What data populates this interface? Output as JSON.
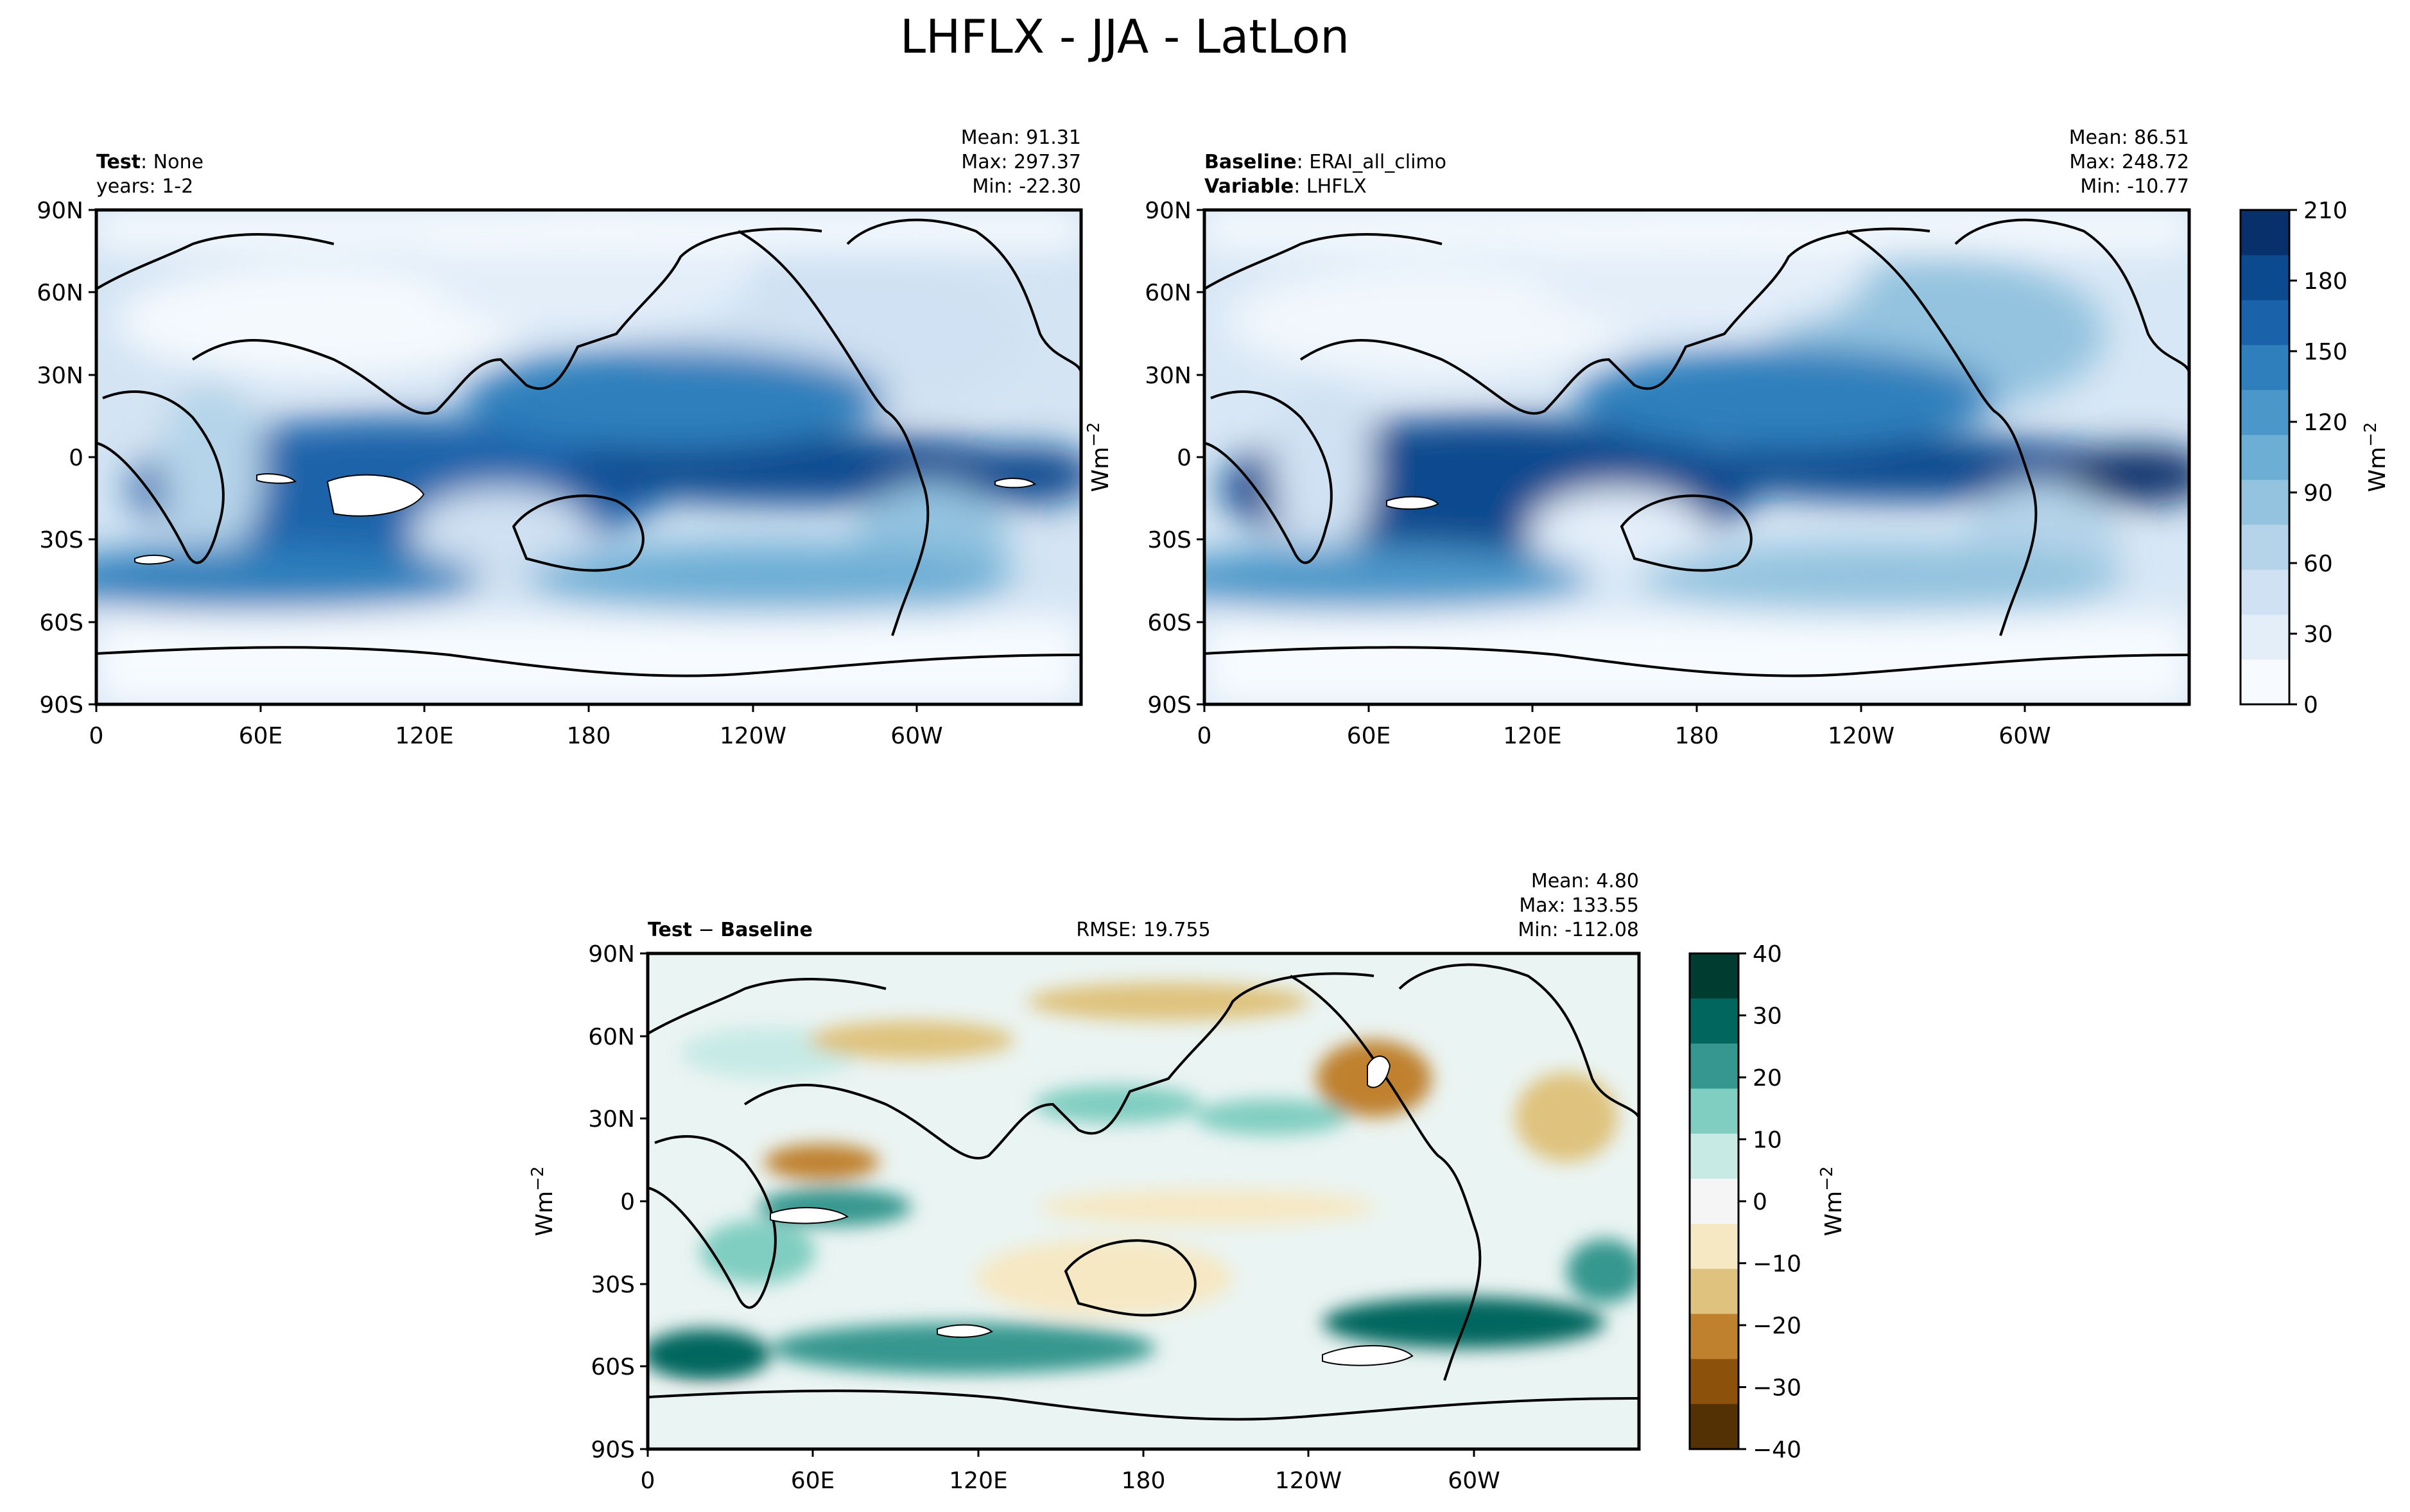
{
  "figure": {
    "title": "LHFLX - JJA - LatLon"
  },
  "axes": {
    "lat_ticks": [
      "90N",
      "60N",
      "30N",
      "0",
      "30S",
      "60S",
      "90S"
    ],
    "lon_ticks": [
      "0",
      "60E",
      "120E",
      "180",
      "120W",
      "60W"
    ]
  },
  "panels": {
    "test": {
      "label_bold": "Test",
      "label_rest": ": None",
      "line2": "years: 1-2",
      "mean": "Mean: 91.31",
      "max": "Max: 297.37",
      "min": "Min: -22.30",
      "side_ylabel": "Wm",
      "side_ylabel_sup": "−2"
    },
    "baseline": {
      "label_bold": "Baseline",
      "label_rest": ": ERAI_all_climo",
      "var_bold": "Variable",
      "var_rest": ": LHFLX",
      "mean": "Mean: 86.51",
      "max": "Max: 248.72",
      "min": "Min: -10.77"
    },
    "diff": {
      "label_bold_1": "Test",
      "label_op": " − ",
      "label_bold_2": "Baseline",
      "rmse": "RMSE: 19.755",
      "mean": "Mean:  4.80",
      "max": "Max: 133.55",
      "min": "Min: -112.08",
      "ylabel": "Wm",
      "ylabel_sup": "−2"
    }
  },
  "colorbars": {
    "main": {
      "ticks": [
        "0",
        "30",
        "60",
        "90",
        "120",
        "150",
        "180",
        "210"
      ],
      "label": "Wm",
      "label_sup": "−2",
      "colors": [
        "#f7fbff",
        "#e3eef9",
        "#cfe1f2",
        "#b5d4e9",
        "#93c3df",
        "#6daed5",
        "#4b97c9",
        "#2f7fbc",
        "#1a63aa",
        "#0b4a8e",
        "#08306b"
      ]
    },
    "diff": {
      "ticks": [
        "40",
        "30",
        "20",
        "10",
        "0",
        "−10",
        "−20",
        "−30",
        "−40"
      ],
      "label": "Wm",
      "label_sup": "−2",
      "colors": [
        "#003c30",
        "#01665e",
        "#35978f",
        "#80cdc1",
        "#c7eae5",
        "#f5f5f5",
        "#f6e8c3",
        "#dfc27d",
        "#bf812d",
        "#8c510a",
        "#543005"
      ]
    }
  },
  "chart_data": [
    {
      "type": "heatmap",
      "title": "Test: None",
      "subtitle": "years: 1-2",
      "xlabel": "",
      "ylabel": "",
      "x_range": [
        0,
        360
      ],
      "y_range": [
        -90,
        90
      ],
      "colorbar_range": [
        0,
        210
      ],
      "stats": {
        "mean": 91.31,
        "max": 297.37,
        "min": -22.3
      }
    },
    {
      "type": "heatmap",
      "title": "Baseline: ERAI_all_climo",
      "subtitle": "Variable: LHFLX",
      "xlabel": "",
      "ylabel": "",
      "x_range": [
        0,
        360
      ],
      "y_range": [
        -90,
        90
      ],
      "colorbar_range": [
        0,
        210
      ],
      "stats": {
        "mean": 86.51,
        "max": 248.72,
        "min": -10.77
      }
    },
    {
      "type": "heatmap",
      "title": "Test − Baseline",
      "xlabel": "",
      "ylabel": "Wm−2",
      "x_range": [
        0,
        360
      ],
      "y_range": [
        -90,
        90
      ],
      "colorbar_range": [
        -40,
        40
      ],
      "stats": {
        "mean": 4.8,
        "max": 133.55,
        "min": -112.08,
        "rmse": 19.755
      }
    }
  ]
}
